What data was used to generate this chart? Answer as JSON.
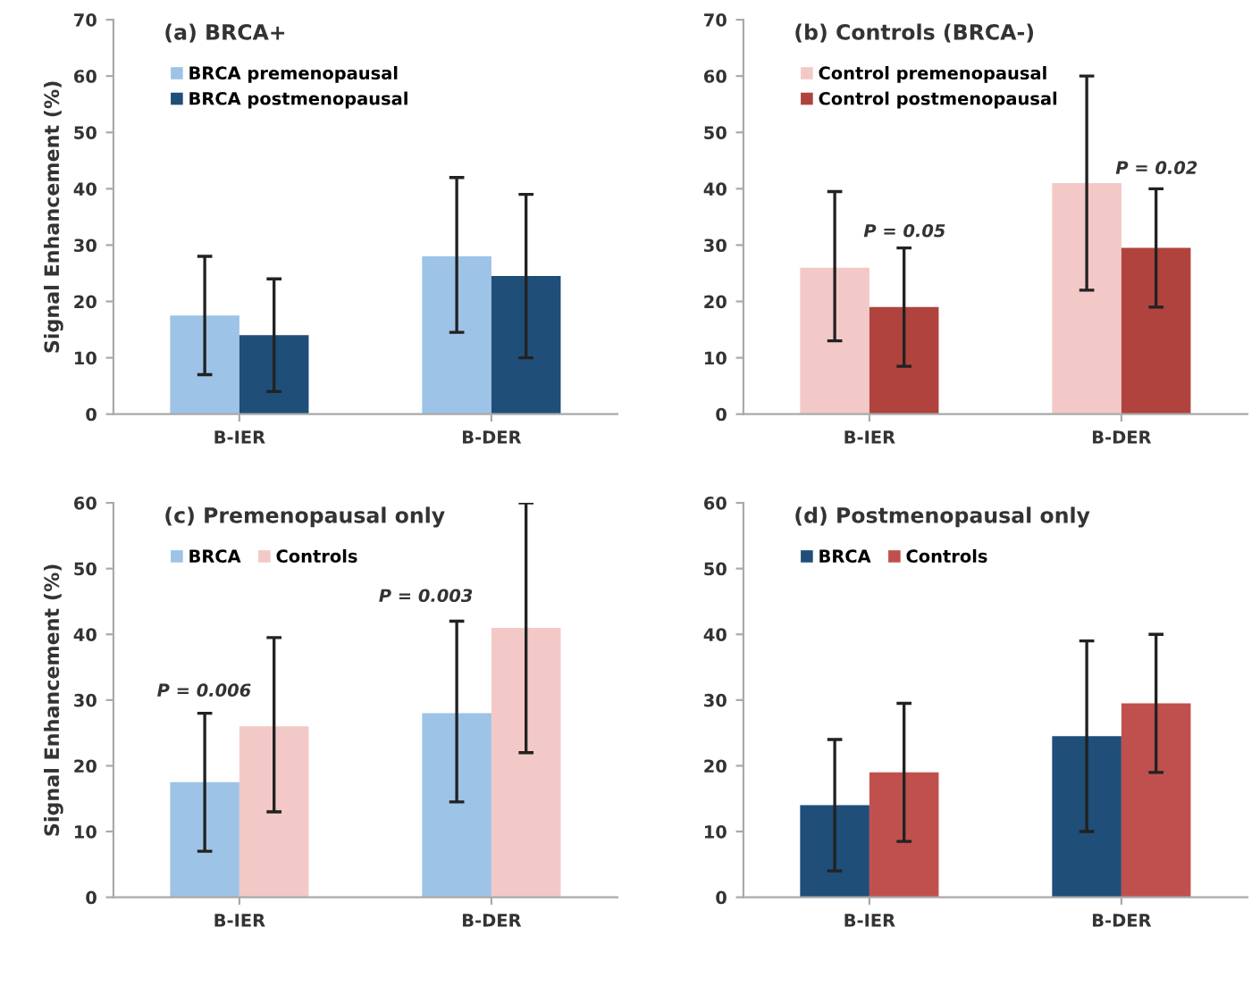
{
  "chart_data": [
    {
      "type": "bar",
      "title": "(a) BRCA+",
      "ylabel": "Signal Enhancement (%)",
      "categories": [
        "B-IER",
        "B-DER"
      ],
      "ylim": [
        0,
        70
      ],
      "yticks": [
        0,
        10,
        20,
        30,
        40,
        50,
        60,
        70
      ],
      "grid": false,
      "legend": "top left",
      "series": [
        {
          "name": "BRCA premenopausal",
          "color": "#9dc3e6",
          "values": [
            17.5,
            28
          ],
          "errors": [
            [
              7,
              28
            ],
            [
              14.5,
              42
            ]
          ]
        },
        {
          "name": "BRCA postmenopausal",
          "color": "#1f4e79",
          "values": [
            14,
            24.5
          ],
          "errors": [
            [
              4,
              24
            ],
            [
              10,
              39
            ]
          ]
        }
      ]
    },
    {
      "type": "bar",
      "title": "(b) Controls (BRCA-)",
      "categories": [
        "B-IER",
        "B-DER"
      ],
      "ylim": [
        0,
        70
      ],
      "yticks": [
        0,
        10,
        20,
        30,
        40,
        50,
        60,
        70
      ],
      "grid": false,
      "legend": "top left",
      "series": [
        {
          "name": "Control premenopausal",
          "color": "#f2c9c6",
          "values": [
            26,
            41
          ],
          "errors": [
            [
              13,
              39.5
            ],
            [
              22,
              60
            ]
          ]
        },
        {
          "name": "Control postmenopausal",
          "color": "#b0433d",
          "values": [
            19,
            29.5
          ],
          "errors": [
            [
              8.5,
              29.5
            ],
            [
              19,
              40
            ]
          ]
        }
      ],
      "annotations": [
        "P = 0.05",
        "P = 0.02"
      ]
    },
    {
      "type": "bar",
      "title": "(c) Premenopausal only",
      "ylabel": "Signal Enhancement (%)",
      "categories": [
        "B-IER",
        "B-DER"
      ],
      "ylim": [
        0,
        60
      ],
      "yticks": [
        0,
        10,
        20,
        30,
        40,
        50,
        60
      ],
      "grid": false,
      "legend": "top left",
      "series": [
        {
          "name": "BRCA",
          "color": "#9dc3e6",
          "values": [
            17.5,
            28
          ],
          "errors": [
            [
              7,
              28
            ],
            [
              14.5,
              42
            ]
          ]
        },
        {
          "name": "Controls",
          "color": "#f2c9c6",
          "values": [
            26,
            41
          ],
          "errors": [
            [
              13,
              39.5
            ],
            [
              22,
              60
            ]
          ]
        }
      ],
      "annotations": [
        "P = 0.006",
        "P = 0.003"
      ]
    },
    {
      "type": "bar",
      "title": "(d) Postmenopausal only",
      "categories": [
        "B-IER",
        "B-DER"
      ],
      "ylim": [
        0,
        60
      ],
      "yticks": [
        0,
        10,
        20,
        30,
        40,
        50,
        60
      ],
      "grid": false,
      "legend": "top left",
      "series": [
        {
          "name": "BRCA",
          "color": "#1f4e79",
          "values": [
            14,
            24.5
          ],
          "errors": [
            [
              4,
              24
            ],
            [
              10,
              39
            ]
          ]
        },
        {
          "name": "Controls",
          "color": "#c0504d",
          "values": [
            19,
            29.5
          ],
          "errors": [
            [
              8.5,
              29.5
            ],
            [
              19,
              40
            ]
          ]
        }
      ]
    }
  ]
}
